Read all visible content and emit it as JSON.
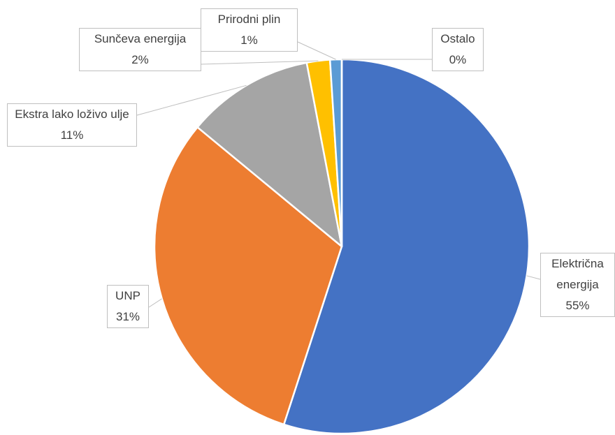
{
  "chart_data": {
    "type": "pie",
    "categories": [
      "Električna energija",
      "UNP",
      "Ekstra lako loživo ulje",
      "Sunčeva energija",
      "Prirodni plin",
      "Ostalo"
    ],
    "values": [
      55,
      31,
      11,
      2,
      1,
      0
    ],
    "value_labels": [
      "55%",
      "31%",
      "11%",
      "2%",
      "1%",
      "0%"
    ],
    "colors": [
      "#4472c4",
      "#ed7d31",
      "#a5a5a5",
      "#ffc000",
      "#5b9bd5",
      "#264478"
    ]
  }
}
